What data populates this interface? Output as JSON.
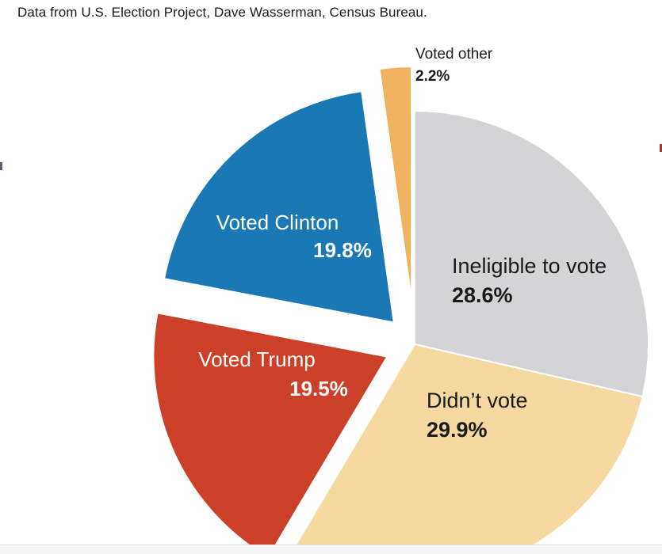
{
  "source_note": "Data from U.S. Election Project, Dave Wasserman, Census Bureau.",
  "chart_data": {
    "type": "pie",
    "title": "",
    "start": "12 o'clock",
    "direction": "clockwise",
    "slices": [
      {
        "label": "Ineligible to vote",
        "value_label": "28.6%",
        "value": 28.6,
        "color": "#d4d3d6",
        "label_color": "#1a1a1a"
      },
      {
        "label": "Didn’t vote",
        "value_label": "29.9%",
        "value": 29.9,
        "color": "#f5d9a0",
        "label_color": "#1a1a1a"
      },
      {
        "label": "Voted Trump",
        "value_label": "19.5%",
        "value": 19.5,
        "color": "#cc402a",
        "label_color": "#ffffff"
      },
      {
        "label": "Voted Clinton",
        "value_label": "19.8%",
        "value": 19.8,
        "color": "#1a78b4",
        "label_color": "#ffffff"
      },
      {
        "label": "Voted other",
        "value_label": "2.2%",
        "value": 2.2,
        "color": "#f0b25e",
        "label_color": "#1a1a1a"
      }
    ]
  }
}
